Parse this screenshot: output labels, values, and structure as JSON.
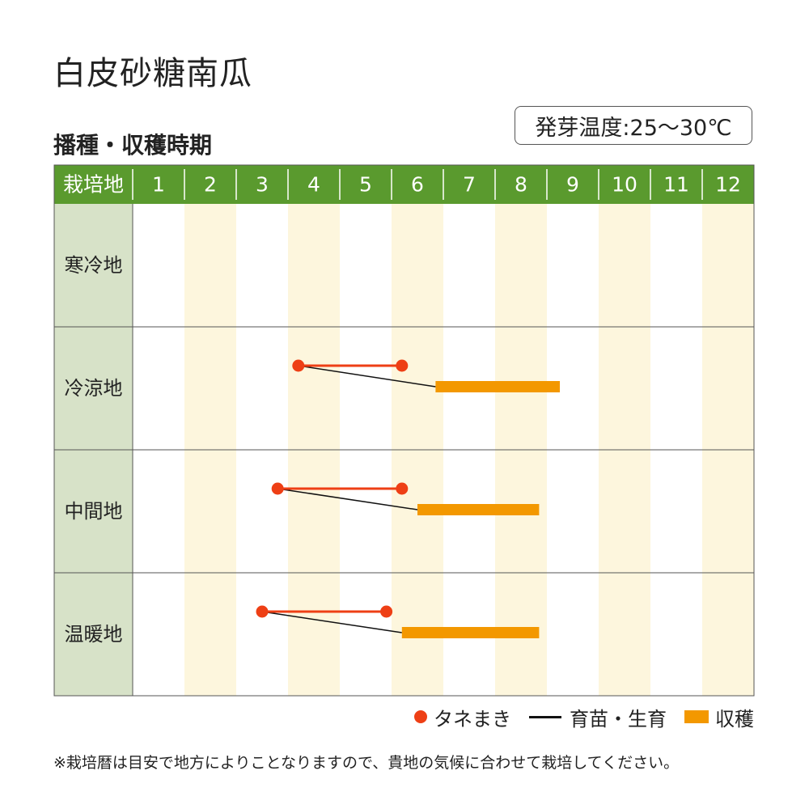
{
  "title": "白皮砂糖南瓜",
  "subtitle": "播種・収穫時期",
  "temperature_badge": "発芽温度:25～30℃",
  "note": "※栽培暦は目安で地方によりことなりますので、貴地の気候に合わせて栽培してください。",
  "legend": {
    "sowing": "タネまき",
    "growing": "育苗・生育",
    "harvest": "収穫"
  },
  "colors": {
    "header_bg": "#5a9a2e",
    "label_bg": "#d7e2c8",
    "stripe": "#fdf6dd",
    "sowing": "#ee3f15",
    "growing": "#111111",
    "harvest": "#f39800"
  },
  "chart_data": {
    "type": "table",
    "row_header_label": "栽培地",
    "months": [
      "1",
      "2",
      "3",
      "4",
      "5",
      "6",
      "7",
      "8",
      "9",
      "10",
      "11",
      "12"
    ],
    "regions": [
      {
        "name": "寒冷地",
        "sowing": null,
        "harvest": null
      },
      {
        "name": "冷涼地",
        "sowing": [
          4.2,
          6.2
        ],
        "harvest": [
          6.85,
          9.25
        ]
      },
      {
        "name": "中間地",
        "sowing": [
          3.8,
          6.2
        ],
        "harvest": [
          6.5,
          8.85
        ]
      },
      {
        "name": "温暖地",
        "sowing": [
          3.5,
          5.9
        ],
        "harvest": [
          6.2,
          8.85
        ]
      }
    ]
  }
}
